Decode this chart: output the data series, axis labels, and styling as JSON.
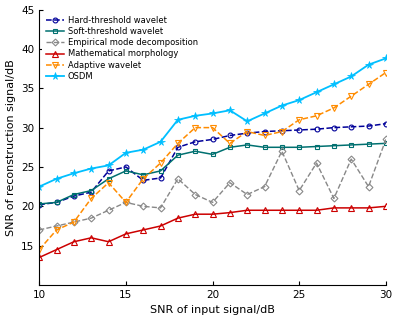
{
  "x": [
    10,
    11,
    12,
    13,
    14,
    15,
    16,
    17,
    18,
    19,
    20,
    21,
    22,
    23,
    24,
    25,
    26,
    27,
    28,
    29,
    30
  ],
  "hard_threshold": [
    20.2,
    20.5,
    21.3,
    21.8,
    24.5,
    25.0,
    23.3,
    23.6,
    27.5,
    28.2,
    28.5,
    29.0,
    29.3,
    29.5,
    29.6,
    29.7,
    29.8,
    30.0,
    30.1,
    30.2,
    30.5
  ],
  "soft_threshold": [
    20.3,
    20.5,
    21.5,
    22.0,
    23.5,
    24.5,
    24.0,
    24.5,
    26.5,
    27.0,
    26.6,
    27.5,
    27.8,
    27.5,
    27.5,
    27.5,
    27.6,
    27.7,
    27.8,
    27.9,
    28.0
  ],
  "emd": [
    17.0,
    17.5,
    18.0,
    18.5,
    19.5,
    20.5,
    20.0,
    19.8,
    23.5,
    21.5,
    20.5,
    23.0,
    21.5,
    22.5,
    27.0,
    22.0,
    25.5,
    21.0,
    26.0,
    22.5,
    28.5
  ],
  "math_morph": [
    13.5,
    14.5,
    15.5,
    16.0,
    15.5,
    16.5,
    17.0,
    17.5,
    18.5,
    19.0,
    19.0,
    19.2,
    19.5,
    19.5,
    19.5,
    19.5,
    19.5,
    19.8,
    19.8,
    19.8,
    20.0
  ],
  "adaptive": [
    14.5,
    17.0,
    18.0,
    21.0,
    23.0,
    20.5,
    23.5,
    25.5,
    28.0,
    30.0,
    30.0,
    28.0,
    29.5,
    29.0,
    29.5,
    31.0,
    31.5,
    32.5,
    34.0,
    35.5,
    37.0
  ],
  "osdm": [
    22.5,
    23.5,
    24.2,
    24.8,
    25.2,
    26.8,
    27.2,
    28.2,
    31.0,
    31.5,
    31.8,
    32.2,
    30.8,
    31.8,
    32.8,
    33.5,
    34.5,
    35.5,
    36.5,
    38.0,
    38.8
  ],
  "xlabel": "SNR of input signal/dB",
  "ylabel": "SNR of reconstruction signal/dB",
  "xlim": [
    10,
    30
  ],
  "ylim": [
    10,
    45
  ],
  "yticks": [
    15,
    20,
    25,
    30,
    35,
    40,
    45
  ],
  "xticks": [
    10,
    15,
    20,
    25,
    30
  ],
  "colors": {
    "hard": "#000099",
    "soft": "#007070",
    "emd": "#888888",
    "morph": "#CC0000",
    "adaptive": "#FF8C00",
    "osdm": "#00BFFF"
  },
  "legend_labels": [
    "Hard-threshold wavelet",
    "Soft-threshold wavelet",
    "Empirical mode decomposition",
    "Mathematical morphology",
    "Adaptive wavelet",
    "OSDM"
  ],
  "title_fontsize": 8,
  "axis_fontsize": 8,
  "tick_fontsize": 7.5,
  "legend_fontsize": 6.0
}
